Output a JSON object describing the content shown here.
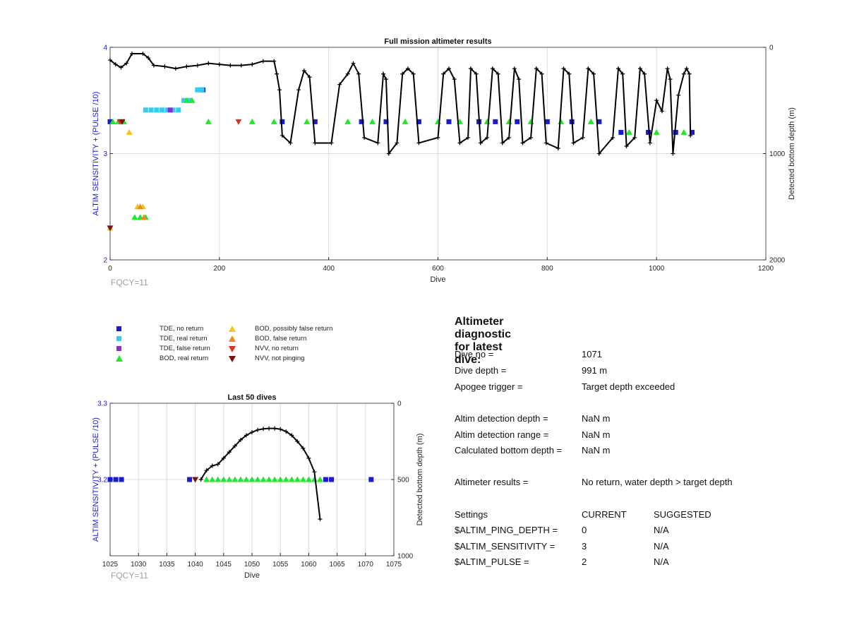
{
  "charts": {
    "full": {
      "title": "Full mission altimeter results",
      "xlabel": "Dive",
      "ylabel_left": "ALTIM SENSITIVITY + (PULSE /10)",
      "ylabel_right": "Detected bottom depth (m)",
      "xticks": [
        "0",
        "200",
        "400",
        "600",
        "800",
        "1000",
        "1200"
      ],
      "yticks_left": [
        "4",
        "3",
        "2"
      ],
      "yticks_right": [
        "0",
        "1000",
        "2000"
      ],
      "fqcy": "FQCY=11"
    },
    "last50": {
      "title": "Last 50 dives",
      "xlabel": "Dive",
      "ylabel_left": "ALTIM SENSITIVITY + (PULSE /10)",
      "ylabel_right": "Detected bottom depth (m)",
      "xticks": [
        "1025",
        "1030",
        "1035",
        "1040",
        "1045",
        "1050",
        "1055",
        "1060",
        "1065",
        "1070",
        "1075"
      ],
      "yticks_left": [
        "3.3",
        "3.2"
      ],
      "yticks_right": [
        "0",
        "500",
        "1000"
      ],
      "fqcy": "FQCY=11"
    }
  },
  "chart_data": [
    {
      "type": "scatter",
      "title": "Full mission altimeter results",
      "xlabel": "Dive",
      "ylabel": "ALTIM SENSITIVITY + (PULSE /10)",
      "y2label": "Detected bottom depth (m)",
      "xlim": [
        0,
        1200
      ],
      "ylim": [
        2,
        4
      ],
      "y2lim": [
        0,
        2000
      ],
      "grid": true,
      "series": [
        {
          "name": "TDE, no return",
          "color": "#1a1ad4",
          "marker": "square",
          "points": [
            [
              0,
              3.3
            ],
            [
              315,
              3.3
            ],
            [
              375,
              3.3
            ],
            [
              460,
              3.3
            ],
            [
              505,
              3.3
            ],
            [
              565,
              3.3
            ],
            [
              620,
              3.3
            ],
            [
              675,
              3.3
            ],
            [
              705,
              3.3
            ],
            [
              745,
              3.3
            ],
            [
              800,
              3.3
            ],
            [
              845,
              3.3
            ],
            [
              895,
              3.3
            ],
            [
              935,
              3.2
            ],
            [
              985,
              3.2
            ],
            [
              1035,
              3.2
            ],
            [
              1065,
              3.2
            ],
            [
              170,
              3.6
            ]
          ]
        },
        {
          "name": "TDE, real return",
          "color": "#33ccee",
          "marker": "square",
          "points": [
            [
              65,
              3.41
            ],
            [
              75,
              3.41
            ],
            [
              85,
              3.41
            ],
            [
              95,
              3.41
            ],
            [
              105,
              3.41
            ],
            [
              115,
              3.41
            ],
            [
              125,
              3.41
            ],
            [
              135,
              3.5
            ],
            [
              145,
              3.5
            ],
            [
              160,
              3.6
            ],
            [
              168,
              3.6
            ]
          ]
        },
        {
          "name": "TDE, false return",
          "color": "#8e2ccf",
          "marker": "square",
          "points": [
            [
              110,
              3.41
            ]
          ]
        },
        {
          "name": "BOD, real return",
          "color": "#1ee82a",
          "marker": "triangle-up",
          "points": [
            [
              5,
              3.3
            ],
            [
              15,
              3.3
            ],
            [
              25,
              3.3
            ],
            [
              45,
              2.4
            ],
            [
              55,
              2.4
            ],
            [
              65,
              2.4
            ],
            [
              140,
              3.5
            ],
            [
              150,
              3.5
            ],
            [
              180,
              3.3
            ],
            [
              260,
              3.3
            ],
            [
              300,
              3.3
            ],
            [
              360,
              3.3
            ],
            [
              435,
              3.3
            ],
            [
              480,
              3.3
            ],
            [
              540,
              3.3
            ],
            [
              600,
              3.3
            ],
            [
              640,
              3.3
            ],
            [
              690,
              3.3
            ],
            [
              730,
              3.3
            ],
            [
              770,
              3.3
            ],
            [
              825,
              3.3
            ],
            [
              880,
              3.3
            ],
            [
              950,
              3.2
            ],
            [
              1000,
              3.2
            ],
            [
              1050,
              3.2
            ]
          ]
        },
        {
          "name": "BOD, possibly false return",
          "color": "#f5c518",
          "marker": "triangle-up",
          "points": [
            [
              0,
              2.3
            ],
            [
              35,
              3.2
            ],
            [
              50,
              2.5
            ],
            [
              60,
              2.5
            ]
          ]
        },
        {
          "name": "BOD, false return",
          "color": "#f08a1c",
          "marker": "triangle-up",
          "points": [
            [
              55,
              2.5
            ],
            [
              62,
              2.4
            ]
          ]
        },
        {
          "name": "NVV, no return",
          "color": "#e03020",
          "marker": "triangle-down",
          "points": [
            [
              18,
              3.3
            ],
            [
              235,
              3.3
            ]
          ]
        },
        {
          "name": "NVV, not pinging",
          "color": "#7a1010",
          "marker": "triangle-down",
          "points": [
            [
              22,
              3.3
            ],
            [
              0,
              2.3
            ]
          ]
        },
        {
          "name": "Detected bottom depth",
          "color": "#000000",
          "axis": "right",
          "points": [
            [
              0,
              120
            ],
            [
              10,
              160
            ],
            [
              20,
              190
            ],
            [
              30,
              150
            ],
            [
              40,
              60
            ],
            [
              60,
              60
            ],
            [
              70,
              100
            ],
            [
              80,
              170
            ],
            [
              100,
              180
            ],
            [
              120,
              200
            ],
            [
              140,
              180
            ],
            [
              160,
              170
            ],
            [
              180,
              150
            ],
            [
              200,
              160
            ],
            [
              220,
              170
            ],
            [
              240,
              170
            ],
            [
              260,
              160
            ],
            [
              280,
              130
            ],
            [
              300,
              130
            ],
            [
              305,
              250
            ],
            [
              310,
              400
            ],
            [
              315,
              830
            ],
            [
              330,
              900
            ],
            [
              345,
              400
            ],
            [
              355,
              220
            ],
            [
              365,
              280
            ],
            [
              375,
              900
            ],
            [
              405,
              900
            ],
            [
              420,
              350
            ],
            [
              435,
              250
            ],
            [
              445,
              150
            ],
            [
              455,
              250
            ],
            [
              465,
              850
            ],
            [
              490,
              900
            ],
            [
              500,
              250
            ],
            [
              505,
              300
            ],
            [
              510,
              1000
            ],
            [
              525,
              900
            ],
            [
              535,
              250
            ],
            [
              545,
              200
            ],
            [
              555,
              250
            ],
            [
              565,
              900
            ],
            [
              600,
              850
            ],
            [
              610,
              250
            ],
            [
              620,
              200
            ],
            [
              630,
              300
            ],
            [
              640,
              900
            ],
            [
              655,
              850
            ],
            [
              660,
              200
            ],
            [
              670,
              250
            ],
            [
              678,
              900
            ],
            [
              690,
              850
            ],
            [
              700,
              200
            ],
            [
              710,
              250
            ],
            [
              718,
              900
            ],
            [
              730,
              850
            ],
            [
              740,
              200
            ],
            [
              748,
              300
            ],
            [
              755,
              900
            ],
            [
              770,
              850
            ],
            [
              780,
              200
            ],
            [
              790,
              250
            ],
            [
              798,
              900
            ],
            [
              820,
              950
            ],
            [
              830,
              200
            ],
            [
              840,
              250
            ],
            [
              848,
              900
            ],
            [
              865,
              850
            ],
            [
              875,
              200
            ],
            [
              885,
              250
            ],
            [
              895,
              1000
            ],
            [
              920,
              850
            ],
            [
              930,
              200
            ],
            [
              938,
              250
            ],
            [
              945,
              930
            ],
            [
              960,
              850
            ],
            [
              970,
              200
            ],
            [
              978,
              250
            ],
            [
              988,
              900
            ],
            [
              1000,
              500
            ],
            [
              1010,
              600
            ],
            [
              1020,
              200
            ],
            [
              1025,
              300
            ],
            [
              1030,
              1000
            ],
            [
              1040,
              450
            ],
            [
              1050,
              250
            ],
            [
              1055,
              200
            ],
            [
              1060,
              250
            ],
            [
              1062,
              830
            ]
          ]
        }
      ]
    },
    {
      "type": "scatter",
      "title": "Last 50 dives",
      "xlabel": "Dive",
      "ylabel": "ALTIM SENSITIVITY + (PULSE /10)",
      "y2label": "Detected bottom depth (m)",
      "xlim": [
        1025,
        1075
      ],
      "ylim": [
        3.1,
        3.3
      ],
      "y2lim": [
        0,
        1000
      ],
      "grid": true,
      "series": [
        {
          "name": "TDE, no return",
          "color": "#1a1ad4",
          "marker": "square",
          "points": [
            [
              1025,
              3.2
            ],
            [
              1026,
              3.2
            ],
            [
              1027,
              3.2
            ],
            [
              1039,
              3.2
            ],
            [
              1063,
              3.2
            ],
            [
              1064,
              3.2
            ],
            [
              1071,
              3.2
            ]
          ]
        },
        {
          "name": "BOD, real return",
          "color": "#1ee82a",
          "marker": "triangle-up",
          "points": [
            [
              1042,
              3.2
            ],
            [
              1043,
              3.2
            ],
            [
              1044,
              3.2
            ],
            [
              1045,
              3.2
            ],
            [
              1046,
              3.2
            ],
            [
              1047,
              3.2
            ],
            [
              1048,
              3.2
            ],
            [
              1049,
              3.2
            ],
            [
              1050,
              3.2
            ],
            [
              1051,
              3.2
            ],
            [
              1052,
              3.2
            ],
            [
              1053,
              3.2
            ],
            [
              1054,
              3.2
            ],
            [
              1055,
              3.2
            ],
            [
              1056,
              3.2
            ],
            [
              1057,
              3.2
            ],
            [
              1058,
              3.2
            ],
            [
              1059,
              3.2
            ],
            [
              1060,
              3.2
            ],
            [
              1061,
              3.2
            ],
            [
              1062,
              3.2
            ]
          ]
        },
        {
          "name": "NVV, not pinging",
          "color": "#7a1010",
          "marker": "triangle-down",
          "points": [
            [
              1040,
              3.2
            ]
          ]
        },
        {
          "name": "Detected bottom depth",
          "color": "#000000",
          "axis": "right",
          "points": [
            [
              1041,
              500
            ],
            [
              1042,
              440
            ],
            [
              1043,
              410
            ],
            [
              1044,
              400
            ],
            [
              1045,
              360
            ],
            [
              1046,
              320
            ],
            [
              1047,
              280
            ],
            [
              1048,
              240
            ],
            [
              1049,
              210
            ],
            [
              1050,
              190
            ],
            [
              1051,
              175
            ],
            [
              1052,
              168
            ],
            [
              1053,
              165
            ],
            [
              1054,
              165
            ],
            [
              1055,
              170
            ],
            [
              1056,
              185
            ],
            [
              1057,
              210
            ],
            [
              1058,
              250
            ],
            [
              1059,
              295
            ],
            [
              1060,
              360
            ],
            [
              1061,
              450
            ],
            [
              1062,
              760
            ]
          ]
        }
      ]
    }
  ],
  "legend": [
    {
      "label": "TDE, no return",
      "symbol": "square",
      "color": "#1a1ad4"
    },
    {
      "label": "TDE, real return",
      "symbol": "square",
      "color": "#33ccee"
    },
    {
      "label": "TDE, false return",
      "symbol": "square",
      "color": "#8e2ccf"
    },
    {
      "label": "BOD, real return",
      "symbol": "triangle-up",
      "color": "#1ee82a"
    },
    {
      "label": "BOD, possibly false return",
      "symbol": "triangle-up",
      "color": "#f5c518"
    },
    {
      "label": "BOD, false return",
      "symbol": "triangle-up",
      "color": "#f08a1c"
    },
    {
      "label": "NVV, no return",
      "symbol": "triangle-down",
      "color": "#e03020"
    },
    {
      "label": "NVV, not pinging",
      "symbol": "triangle-down",
      "color": "#7a1010"
    }
  ],
  "diagnostic": {
    "title": "Altimeter diagnostic for latest dive:",
    "dive_no_label": "Dive no =",
    "dive_no": "1071",
    "dive_depth_label": "Dive depth =",
    "dive_depth": "991 m",
    "apogee_label": "Apogee trigger =",
    "apogee": "Target depth exceeded",
    "detect_depth_label": "Altim detection depth =",
    "detect_depth": "NaN m",
    "detect_range_label": "Altim detection range =",
    "detect_range": "NaN m",
    "calc_bottom_label": "Calculated bottom depth =",
    "calc_bottom": "NaN m",
    "results_label": "Altimeter results =",
    "results": "No return, water depth > target depth",
    "settings_label": "Settings",
    "current_label": "CURRENT",
    "suggested_label": "SUGGESTED",
    "ping_depth_label": "$ALTIM_PING_DEPTH =",
    "ping_depth_current": "0",
    "ping_depth_suggested": "N/A",
    "sensitivity_label": "$ALTIM_SENSITIVITY =",
    "sensitivity_current": "3",
    "sensitivity_suggested": "N/A",
    "pulse_label": "$ALTIM_PULSE =",
    "pulse_current": "2",
    "pulse_suggested": "N/A"
  }
}
